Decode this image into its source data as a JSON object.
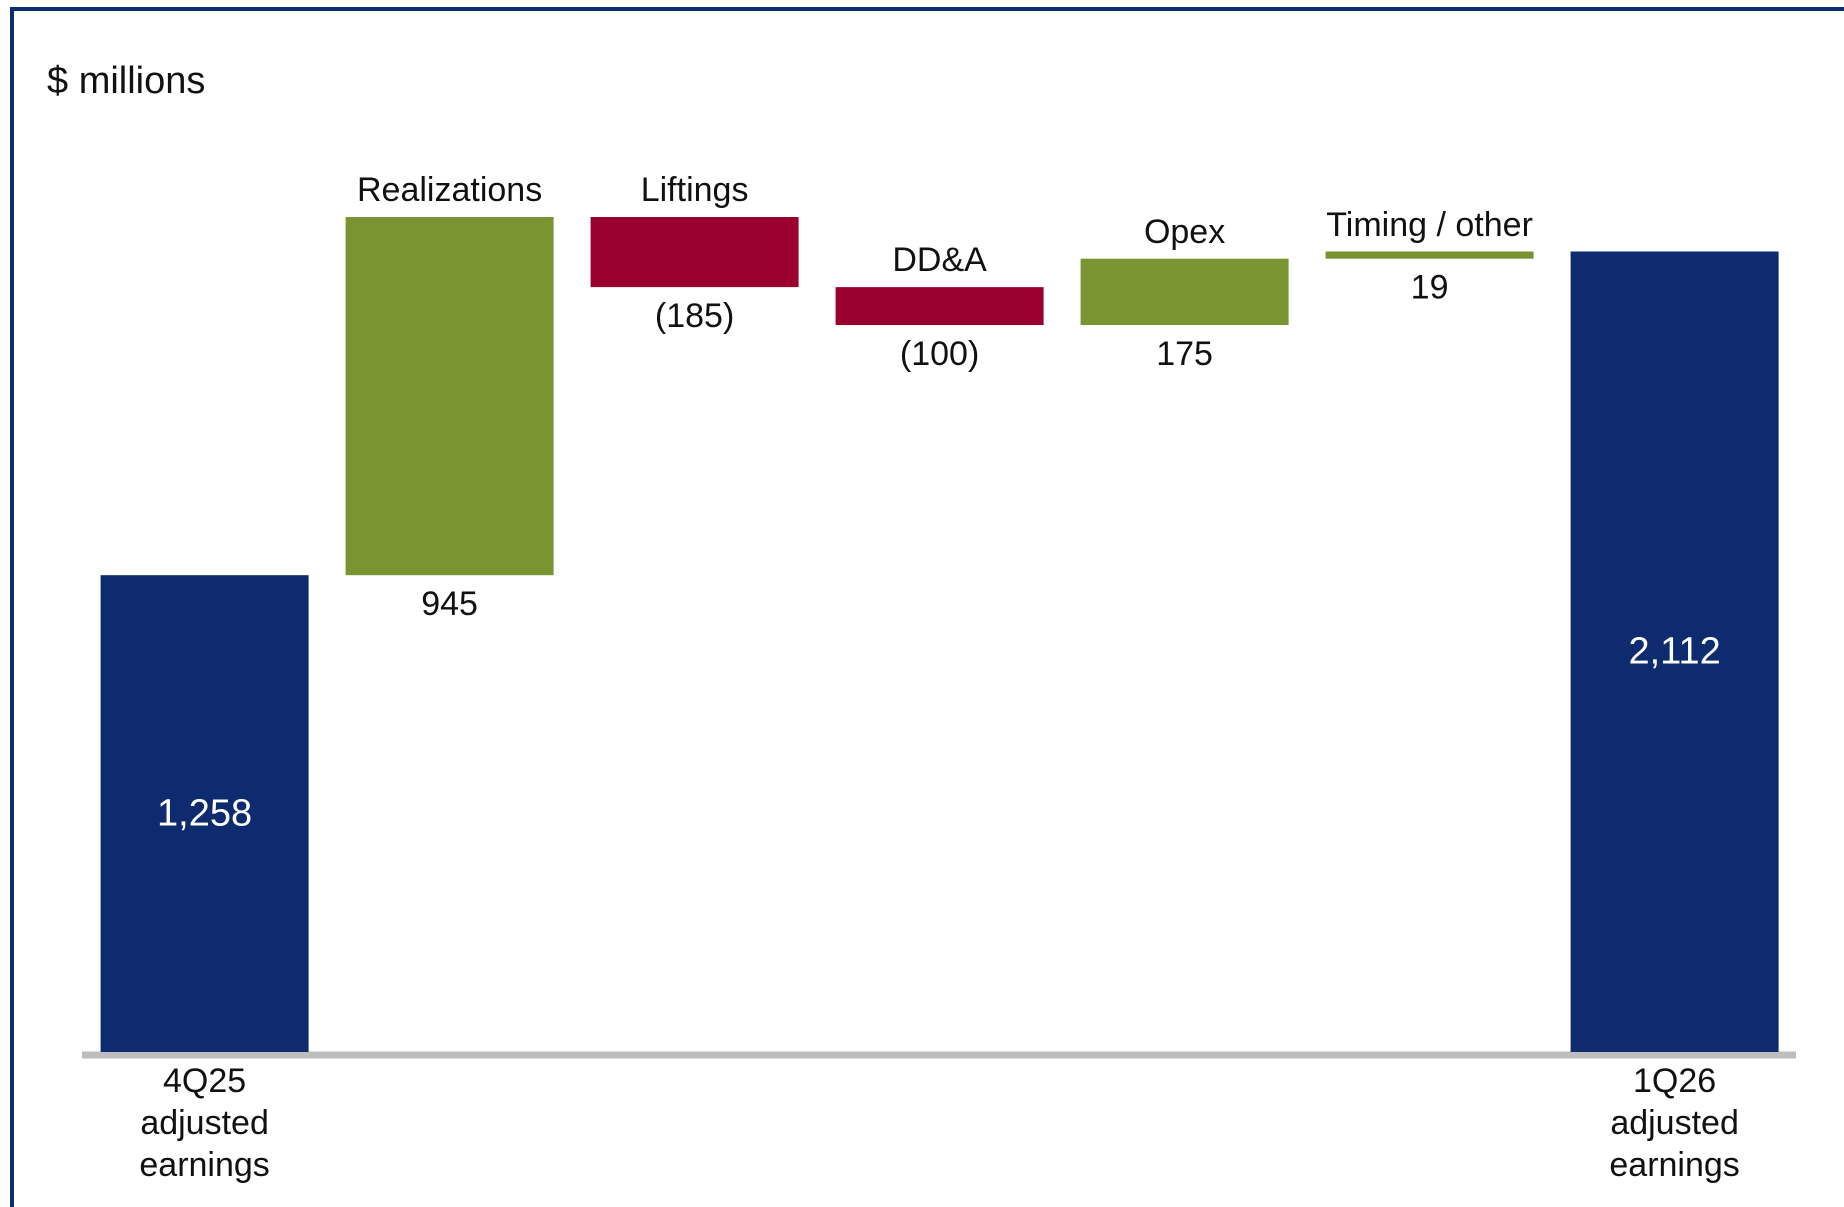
{
  "chart_data": {
    "type": "waterfall",
    "subtitle": "$ millions",
    "categories": [
      "4Q25 adjusted earnings",
      "Realizations",
      "Liftings",
      "DD&A",
      "Opex",
      "Timing / other",
      "1Q26 adjusted earnings"
    ],
    "measure": [
      "total",
      "relative",
      "relative",
      "relative",
      "relative",
      "relative",
      "total"
    ],
    "values": [
      1258,
      945,
      -185,
      -100,
      175,
      19,
      2112
    ],
    "value_labels": [
      "1,258",
      "945",
      "(185)",
      "(100)",
      "175",
      "19",
      "2,112"
    ],
    "colors": [
      "#0d2b6e",
      "#7a9432",
      "#990030",
      "#990030",
      "#7a9432",
      "#7a9432",
      "#0d2b6e"
    ]
  }
}
